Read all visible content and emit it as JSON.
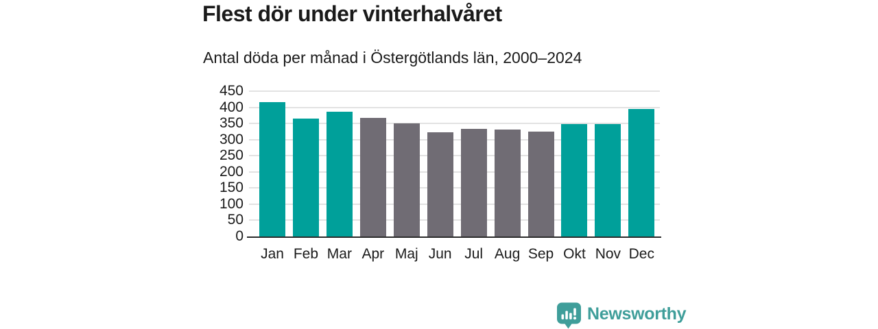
{
  "title": "Flest dör under vinterhalvåret",
  "subtitle": "Antal döda per månad i Östergötlands län, 2000–2024",
  "colors": {
    "highlight": "#00A09A",
    "muted": "#706C74",
    "gridline": "#E2E2E2",
    "axis_line": "#2B2B2B",
    "text": "#1A1A1A",
    "background": "#FFFFFF",
    "logo_teal": "#3F9E9A"
  },
  "chart_data": {
    "type": "bar",
    "title": "Flest dör under vinterhalvåret",
    "subtitle": "Antal döda per månad i Östergötlands län, 2000–2024",
    "categories": [
      "Jan",
      "Feb",
      "Mar",
      "Apr",
      "Maj",
      "Jun",
      "Jul",
      "Aug",
      "Sep",
      "Okt",
      "Nov",
      "Dec"
    ],
    "values": [
      417,
      366,
      386,
      368,
      350,
      322,
      333,
      332,
      324,
      348,
      349,
      395
    ],
    "bar_colors": [
      "highlight",
      "highlight",
      "highlight",
      "muted",
      "muted",
      "muted",
      "muted",
      "muted",
      "muted",
      "highlight",
      "highlight",
      "highlight"
    ],
    "highlighted_categories": [
      "Jan",
      "Feb",
      "Mar",
      "Okt",
      "Nov",
      "Dec"
    ],
    "xlabel": "",
    "ylabel": "",
    "ylim": [
      0,
      450
    ],
    "yticks": [
      0,
      50,
      100,
      150,
      200,
      250,
      300,
      350,
      400,
      450
    ],
    "grid": true,
    "legend": "none"
  },
  "logo": {
    "text": "Newsworthy",
    "icon": "newsworthy-bar-chart-bubble-icon"
  }
}
